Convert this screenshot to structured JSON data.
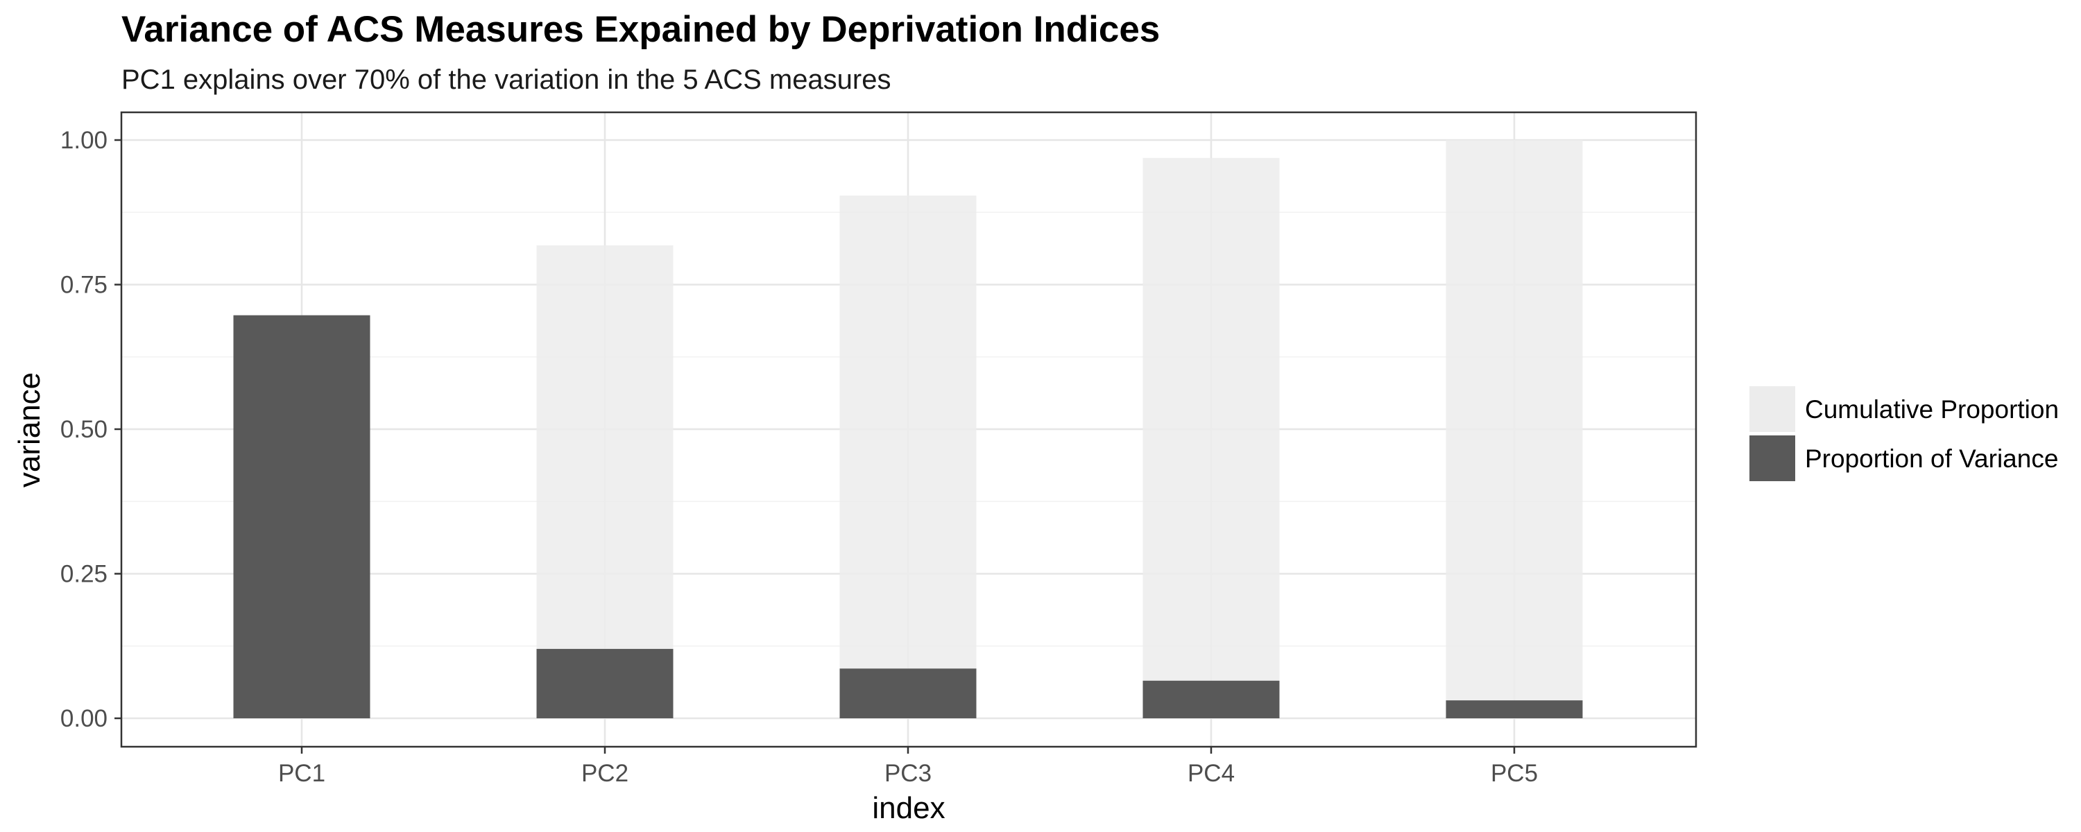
{
  "chart_data": {
    "type": "bar",
    "title": "Variance of ACS Measures Expained by Deprivation Indices",
    "subtitle": "PC1 explains over 70% of the variation in the 5 ACS measures",
    "xlabel": "index",
    "ylabel": "variance",
    "categories": [
      "PC1",
      "PC2",
      "PC3",
      "PC4",
      "PC5"
    ],
    "ylim": [
      0,
      1.0
    ],
    "yticks": [
      "0.00",
      "0.25",
      "0.50",
      "0.75",
      "1.00"
    ],
    "grid": true,
    "legend_position": "right",
    "series": [
      {
        "name": "Cumulative Proportion",
        "color": "#ececec",
        "values": [
          0.697,
          0.818,
          0.904,
          0.969,
          1.0
        ]
      },
      {
        "name": "Proportion of Variance",
        "color": "#595959",
        "values": [
          0.697,
          0.12,
          0.086,
          0.065,
          0.031
        ]
      }
    ]
  }
}
